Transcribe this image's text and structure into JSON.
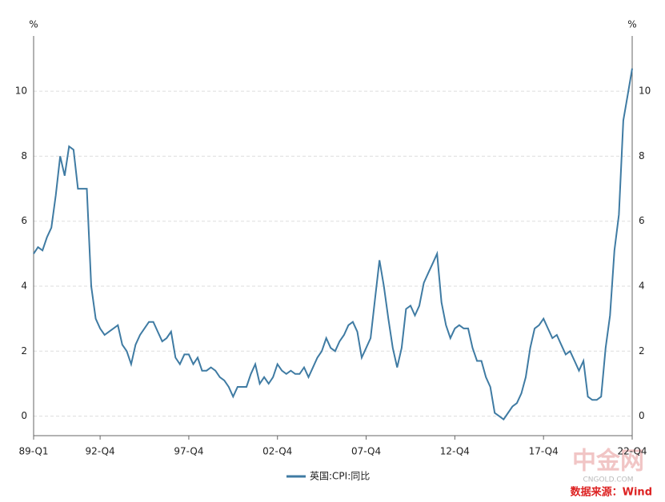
{
  "chart_data": {
    "type": "line",
    "unit": "%",
    "categories": [
      "89-Q1",
      null,
      null,
      null,
      null,
      null,
      null,
      null,
      null,
      null,
      null,
      null,
      null,
      null,
      null,
      "92-Q4",
      null,
      null,
      null,
      null,
      null,
      null,
      null,
      null,
      null,
      null,
      null,
      null,
      null,
      null,
      null,
      null,
      null,
      null,
      null,
      "97-Q4",
      null,
      null,
      null,
      null,
      null,
      null,
      null,
      null,
      null,
      null,
      null,
      null,
      null,
      null,
      null,
      null,
      null,
      null,
      null,
      "02-Q4",
      null,
      null,
      null,
      null,
      null,
      null,
      null,
      null,
      null,
      null,
      null,
      null,
      null,
      null,
      null,
      null,
      null,
      null,
      null,
      "07-Q4",
      null,
      null,
      null,
      null,
      null,
      null,
      null,
      null,
      null,
      null,
      null,
      null,
      null,
      null,
      null,
      null,
      null,
      null,
      null,
      "12-Q4",
      null,
      null,
      null,
      null,
      null,
      null,
      null,
      null,
      null,
      null,
      null,
      null,
      null,
      null,
      null,
      null,
      null,
      null,
      null,
      "17-Q4",
      null,
      null,
      null,
      null,
      null,
      null,
      null,
      null,
      null,
      null,
      null,
      null,
      null,
      null,
      null,
      null,
      null,
      null,
      null,
      "22-Q4"
    ],
    "series": [
      {
        "name": "英国:CPI:同比",
        "color": "#3f7ba3",
        "values": [
          5.0,
          5.2,
          5.1,
          5.5,
          5.8,
          6.8,
          8.0,
          7.4,
          8.3,
          8.2,
          7.0,
          7.0,
          7.0,
          4.0,
          3.0,
          2.7,
          2.5,
          2.6,
          2.7,
          2.8,
          2.2,
          2.0,
          1.6,
          2.2,
          2.5,
          2.7,
          2.9,
          2.9,
          2.6,
          2.3,
          2.4,
          2.6,
          1.8,
          1.6,
          1.9,
          1.9,
          1.6,
          1.8,
          1.4,
          1.4,
          1.5,
          1.4,
          1.2,
          1.1,
          0.9,
          0.6,
          0.9,
          0.9,
          0.9,
          1.3,
          1.6,
          1.0,
          1.2,
          1.0,
          1.2,
          1.6,
          1.4,
          1.3,
          1.4,
          1.3,
          1.3,
          1.5,
          1.2,
          1.5,
          1.8,
          2.0,
          2.4,
          2.1,
          2.0,
          2.3,
          2.5,
          2.8,
          2.9,
          2.6,
          1.8,
          2.1,
          2.4,
          3.6,
          4.8,
          4.0,
          3.0,
          2.1,
          1.5,
          2.1,
          3.3,
          3.4,
          3.1,
          3.4,
          4.1,
          4.4,
          4.7,
          5.0,
          3.5,
          2.8,
          2.4,
          2.7,
          2.8,
          2.7,
          2.7,
          2.1,
          1.7,
          1.7,
          1.2,
          0.9,
          0.1,
          0.0,
          -0.1,
          0.1,
          0.3,
          0.4,
          0.7,
          1.2,
          2.1,
          2.7,
          2.8,
          3.0,
          2.7,
          2.4,
          2.5,
          2.2,
          1.9,
          2.0,
          1.7,
          1.4,
          1.7,
          0.6,
          0.5,
          0.5,
          0.6,
          2.1,
          3.1,
          5.1,
          6.2,
          9.1,
          9.9,
          10.7
        ]
      }
    ],
    "ylim": [
      -0.6,
      11.7
    ],
    "yticks": [
      0,
      2,
      4,
      6,
      8,
      10
    ],
    "grid": true,
    "source": "数据来源：Wind",
    "watermark": "中金网",
    "watermark_sub": "CNGOLD.COM"
  }
}
